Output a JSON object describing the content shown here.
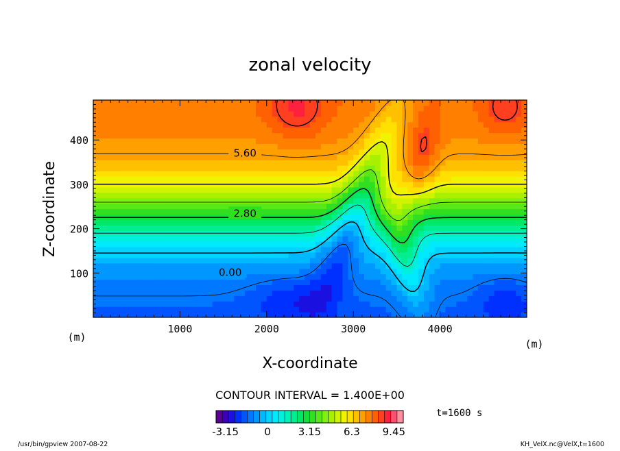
{
  "chart_data": {
    "type": "heatmap",
    "title": "zonal velocity",
    "xlabel": "X-coordinate",
    "ylabel": "Z-coordinate",
    "x_unit": "(m)",
    "y_unit": "(m)",
    "xlim": [
      0,
      5000
    ],
    "ylim": [
      0,
      490
    ],
    "x_ticks": [
      1000,
      2000,
      3000,
      4000
    ],
    "y_ticks": [
      100,
      200,
      300,
      400
    ],
    "grid": false,
    "contour_interval_label": "CONTOUR INTERVAL = 1.400E+00",
    "contour_labels": [
      {
        "text": "5.60",
        "x": 1750,
        "z": 372
      },
      {
        "text": "2.80",
        "x": 1750,
        "z": 236
      },
      {
        "text": "0.00",
        "x": 1580,
        "z": 103
      }
    ],
    "time_label": "t=1600 s",
    "colorbar": {
      "min": -3.85,
      "max": 10.15,
      "tick_labels": [
        "-3.15",
        "0",
        "3.15",
        "6.3",
        "9.45"
      ],
      "tick_values": [
        -3.15,
        0,
        3.15,
        6.3,
        9.45
      ],
      "colors": [
        "#5a0090",
        "#3a00b8",
        "#1a10e0",
        "#0030ff",
        "#0055ff",
        "#0078ff",
        "#0098ff",
        "#00b8ff",
        "#00d4ff",
        "#00eaff",
        "#00f0e0",
        "#00f0b8",
        "#00ee90",
        "#00e868",
        "#10e040",
        "#30e020",
        "#58e818",
        "#80f010",
        "#a8f000",
        "#d0f400",
        "#f0f400",
        "#ffe000",
        "#ffc000",
        "#ffa000",
        "#ff8000",
        "#ff6000",
        "#ff4020",
        "#ff2040",
        "#ff5070",
        "#ff90a0"
      ]
    }
  },
  "footer_left": "/usr/bin/gpview  2007-08-22",
  "footer_right": "KH_VelX.nc@VelX,t=1600"
}
